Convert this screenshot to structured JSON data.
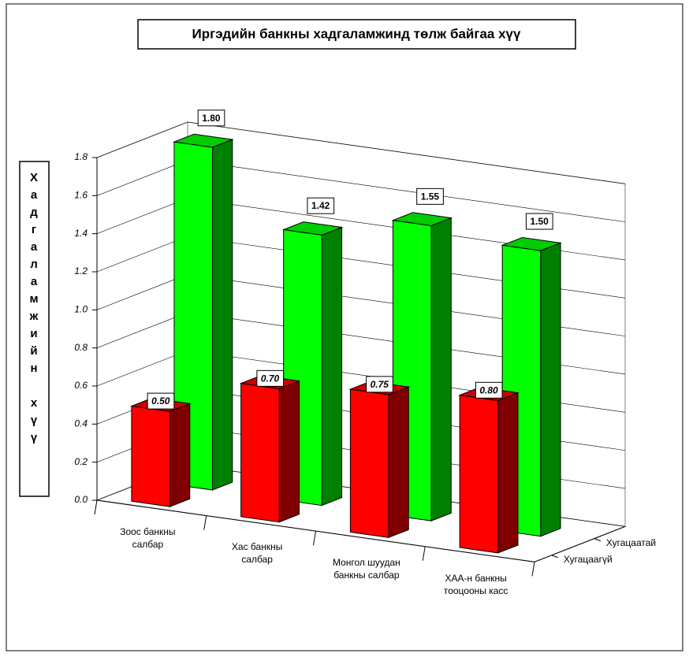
{
  "chart_data": {
    "type": "bar3d",
    "title": "Иргэдийн банкны хадгаламжинд төлж байгаа хүү",
    "y_label": "Хадгаламжийн хүү",
    "categories": [
      "Зоос банкны\nсалбар",
      "Хас  банкны\nсалбар",
      "Монгол шуудан\nбанкны салбар",
      "ХАА-н банкны\nтооцооны касс"
    ],
    "series": [
      {
        "name": "Хугацаагүй",
        "color": "#ff0000",
        "values": [
          0.5,
          0.7,
          0.75,
          0.8
        ],
        "value_labels": [
          "0.50",
          "0.70",
          "0.75",
          "0.80"
        ]
      },
      {
        "name": "Хугацаатай",
        "color": "#00ff00",
        "values": [
          1.8,
          1.42,
          1.55,
          1.5
        ],
        "value_labels": [
          "1.80",
          "1.42",
          "1.55",
          "1.50"
        ]
      }
    ],
    "ylim": [
      0,
      1.8
    ],
    "yticks": [
      {
        "value": 0,
        "label": "0.0"
      },
      0.2,
      0.4,
      0.6,
      0.8,
      {
        "value": 1,
        "label": "1.0"
      },
      1.2,
      1.4,
      1.6,
      1.8
    ],
    "grid": true
  }
}
